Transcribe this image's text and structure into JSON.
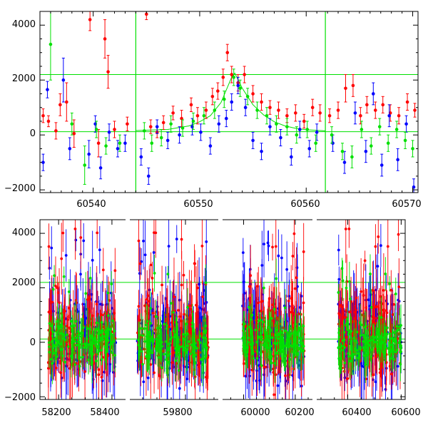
{
  "chart_data": [
    {
      "type": "scatter",
      "title": "",
      "xlabel": "",
      "ylabel": "",
      "xlim": [
        60535,
        60570.5
      ],
      "ylim": [
        -2100,
        4500
      ],
      "x_ticks": [
        60540,
        60550,
        60560,
        60570
      ],
      "x_tick_labels": [
        "60540",
        "60550",
        "60560",
        "60570"
      ],
      "y_ticks": [
        -2000,
        0,
        2000,
        4000
      ],
      "y_tick_labels": [
        "−2000",
        "0",
        "2000",
        "4000"
      ],
      "grid": false,
      "legend": "none",
      "reference_lines": {
        "horizontal": [
          120,
          2200
        ],
        "vertical": [
          60544,
          60561.8
        ],
        "color": "#00e000"
      },
      "model_curve": {
        "color": "#00e000",
        "peak_x": 60553.3,
        "peak_y": 2250,
        "baseline_y": 110,
        "x": [
          60544,
          60547,
          60549,
          60550,
          60551,
          60552,
          60553,
          60553.3,
          60554,
          60555,
          60556,
          60557,
          60558,
          60559,
          60560,
          60561.8
        ],
        "y": [
          160,
          200,
          330,
          480,
          700,
          1180,
          2100,
          2250,
          1700,
          1100,
          730,
          480,
          330,
          240,
          190,
          150
        ]
      },
      "series": [
        {
          "name": "",
          "color": "#ff0000",
          "points": [
            {
              "x": 60535.3,
              "y": 700,
              "err": 250
            },
            {
              "x": 60535.8,
              "y": 500,
              "err": 200
            },
            {
              "x": 60536.5,
              "y": 150,
              "err": 300
            },
            {
              "x": 60536.9,
              "y": 1100,
              "err": 400
            },
            {
              "x": 60537.5,
              "y": 1200,
              "err": 700
            },
            {
              "x": 60538.2,
              "y": 50,
              "err": 500
            },
            {
              "x": 60539.7,
              "y": 4200,
              "err": 400
            },
            {
              "x": 60540.5,
              "y": -300,
              "err": 500
            },
            {
              "x": 60541.1,
              "y": 3500,
              "err": 700
            },
            {
              "x": 60541.4,
              "y": 2300,
              "err": 600
            },
            {
              "x": 60542.0,
              "y": 200,
              "err": 300
            },
            {
              "x": 60543.2,
              "y": 400,
              "err": 250
            },
            {
              "x": 60545.0,
              "y": 4400,
              "err": 200
            },
            {
              "x": 60545.4,
              "y": 300,
              "err": 250
            },
            {
              "x": 60546.0,
              "y": 100,
              "err": 200
            },
            {
              "x": 60546.6,
              "y": 450,
              "err": 250
            },
            {
              "x": 60547.5,
              "y": 800,
              "err": 250
            },
            {
              "x": 60548.3,
              "y": 600,
              "err": 300
            },
            {
              "x": 60549.2,
              "y": 1100,
              "err": 250
            },
            {
              "x": 60549.8,
              "y": 700,
              "err": 300
            },
            {
              "x": 60550.6,
              "y": 900,
              "err": 300
            },
            {
              "x": 60551.2,
              "y": 1400,
              "err": 300
            },
            {
              "x": 60551.7,
              "y": 1600,
              "err": 300
            },
            {
              "x": 60552.2,
              "y": 2100,
              "err": 300
            },
            {
              "x": 60552.6,
              "y": 3000,
              "err": 300
            },
            {
              "x": 60553.0,
              "y": 2200,
              "err": 300
            },
            {
              "x": 60553.6,
              "y": 1900,
              "err": 300
            },
            {
              "x": 60554.2,
              "y": 2200,
              "err": 300
            },
            {
              "x": 60555.0,
              "y": 1500,
              "err": 300
            },
            {
              "x": 60555.8,
              "y": 1200,
              "err": 300
            },
            {
              "x": 60556.6,
              "y": 1000,
              "err": 250
            },
            {
              "x": 60557.4,
              "y": 900,
              "err": 300
            },
            {
              "x": 60558.2,
              "y": 700,
              "err": 250
            },
            {
              "x": 60559.0,
              "y": 800,
              "err": 300
            },
            {
              "x": 60559.8,
              "y": 500,
              "err": 250
            },
            {
              "x": 60560.6,
              "y": 1000,
              "err": 300
            },
            {
              "x": 60561.3,
              "y": 800,
              "err": 300
            },
            {
              "x": 60562.2,
              "y": 700,
              "err": 250
            },
            {
              "x": 60563.0,
              "y": 900,
              "err": 300
            },
            {
              "x": 60563.7,
              "y": 1700,
              "err": 500
            },
            {
              "x": 60564.4,
              "y": 1800,
              "err": 400
            },
            {
              "x": 60565.1,
              "y": 700,
              "err": 300
            },
            {
              "x": 60565.7,
              "y": 1100,
              "err": 300
            },
            {
              "x": 60566.5,
              "y": 900,
              "err": 300
            },
            {
              "x": 60567.2,
              "y": 1100,
              "err": 300
            },
            {
              "x": 60567.9,
              "y": 800,
              "err": 300
            },
            {
              "x": 60568.7,
              "y": 700,
              "err": 300
            },
            {
              "x": 60569.5,
              "y": 1200,
              "err": 300
            },
            {
              "x": 60570.2,
              "y": 900,
              "err": 250
            }
          ]
        },
        {
          "name": "",
          "color": "#0000ff",
          "points": [
            {
              "x": 60535.3,
              "y": -1000,
              "err": 300
            },
            {
              "x": 60535.7,
              "y": 1650,
              "err": 300
            },
            {
              "x": 60537.2,
              "y": 2000,
              "err": 800
            },
            {
              "x": 60537.8,
              "y": -500,
              "err": 400
            },
            {
              "x": 60539.6,
              "y": -700,
              "err": 500
            },
            {
              "x": 60540.2,
              "y": 400,
              "err": 300
            },
            {
              "x": 60540.7,
              "y": -1200,
              "err": 400
            },
            {
              "x": 60541.5,
              "y": 100,
              "err": 300
            },
            {
              "x": 60542.3,
              "y": -500,
              "err": 300
            },
            {
              "x": 60543.0,
              "y": -300,
              "err": 300
            },
            {
              "x": 60544.5,
              "y": -800,
              "err": 300
            },
            {
              "x": 60545.2,
              "y": -1500,
              "err": 300
            },
            {
              "x": 60546.0,
              "y": 300,
              "err": 250
            },
            {
              "x": 60547.0,
              "y": -200,
              "err": 300
            },
            {
              "x": 60548.1,
              "y": 0,
              "err": 300
            },
            {
              "x": 60549.3,
              "y": 300,
              "err": 300
            },
            {
              "x": 60550.1,
              "y": 100,
              "err": 300
            },
            {
              "x": 60551.0,
              "y": -400,
              "err": 300
            },
            {
              "x": 60551.8,
              "y": 400,
              "err": 300
            },
            {
              "x": 60552.5,
              "y": 600,
              "err": 300
            },
            {
              "x": 60553.0,
              "y": 1200,
              "err": 300
            },
            {
              "x": 60553.6,
              "y": 1800,
              "err": 300
            },
            {
              "x": 60554.3,
              "y": 1000,
              "err": 300
            },
            {
              "x": 60555.0,
              "y": -200,
              "err": 300
            },
            {
              "x": 60555.8,
              "y": -600,
              "err": 300
            },
            {
              "x": 60556.6,
              "y": 300,
              "err": 300
            },
            {
              "x": 60557.6,
              "y": -100,
              "err": 300
            },
            {
              "x": 60558.6,
              "y": -800,
              "err": 300
            },
            {
              "x": 60559.4,
              "y": 200,
              "err": 300
            },
            {
              "x": 60560.3,
              "y": -500,
              "err": 300
            },
            {
              "x": 60561.0,
              "y": 100,
              "err": 300
            },
            {
              "x": 60562.5,
              "y": -300,
              "err": 300
            },
            {
              "x": 60563.6,
              "y": -1000,
              "err": 400
            },
            {
              "x": 60564.6,
              "y": 800,
              "err": 400
            },
            {
              "x": 60565.6,
              "y": -600,
              "err": 400
            },
            {
              "x": 60566.3,
              "y": 1500,
              "err": 400
            },
            {
              "x": 60567.1,
              "y": -1100,
              "err": 400
            },
            {
              "x": 60567.8,
              "y": 700,
              "err": 400
            },
            {
              "x": 60568.6,
              "y": -900,
              "err": 400
            },
            {
              "x": 60569.4,
              "y": 400,
              "err": 300
            },
            {
              "x": 60570.1,
              "y": -1900,
              "err": 300
            }
          ]
        },
        {
          "name": "",
          "color": "#00e000",
          "points": [
            {
              "x": 60536.0,
              "y": 3300,
              "err": 1300
            },
            {
              "x": 60538.0,
              "y": 400,
              "err": 400
            },
            {
              "x": 60539.2,
              "y": -1100,
              "err": 700
            },
            {
              "x": 60540.3,
              "y": 200,
              "err": 300
            },
            {
              "x": 60541.2,
              "y": -400,
              "err": 300
            },
            {
              "x": 60542.5,
              "y": -300,
              "err": 300
            },
            {
              "x": 60544.8,
              "y": 150,
              "err": 300
            },
            {
              "x": 60545.5,
              "y": -300,
              "err": 300
            },
            {
              "x": 60546.4,
              "y": -100,
              "err": 300
            },
            {
              "x": 60547.3,
              "y": 400,
              "err": 300
            },
            {
              "x": 60548.4,
              "y": 250,
              "err": 300
            },
            {
              "x": 60549.4,
              "y": 500,
              "err": 300
            },
            {
              "x": 60550.4,
              "y": 700,
              "err": 300
            },
            {
              "x": 60551.4,
              "y": 900,
              "err": 300
            },
            {
              "x": 60552.3,
              "y": 1300,
              "err": 300
            },
            {
              "x": 60553.2,
              "y": 2100,
              "err": 300
            },
            {
              "x": 60553.8,
              "y": 1700,
              "err": 300
            },
            {
              "x": 60554.5,
              "y": 1400,
              "err": 300
            },
            {
              "x": 60555.4,
              "y": 900,
              "err": 300
            },
            {
              "x": 60556.3,
              "y": 700,
              "err": 300
            },
            {
              "x": 60557.2,
              "y": 400,
              "err": 300
            },
            {
              "x": 60558.2,
              "y": 300,
              "err": 300
            },
            {
              "x": 60559.1,
              "y": 0,
              "err": 300
            },
            {
              "x": 60560.1,
              "y": 200,
              "err": 300
            },
            {
              "x": 60560.9,
              "y": -300,
              "err": 300
            },
            {
              "x": 60562.4,
              "y": 0,
              "err": 300
            },
            {
              "x": 60563.4,
              "y": -600,
              "err": 300
            },
            {
              "x": 60564.3,
              "y": -800,
              "err": 400
            },
            {
              "x": 60565.2,
              "y": 200,
              "err": 300
            },
            {
              "x": 60566.1,
              "y": -400,
              "err": 300
            },
            {
              "x": 60566.9,
              "y": 300,
              "err": 300
            },
            {
              "x": 60567.7,
              "y": -300,
              "err": 300
            },
            {
              "x": 60568.5,
              "y": 200,
              "err": 300
            },
            {
              "x": 60569.3,
              "y": -200,
              "err": 300
            },
            {
              "x": 60570.0,
              "y": -500,
              "err": 300
            }
          ]
        }
      ]
    },
    {
      "type": "scatter",
      "title": "",
      "xlabel": "",
      "ylabel": "",
      "ylim": [
        -2100,
        4500
      ],
      "broken_x_axis": true,
      "segments": [
        {
          "xlim": [
            58130,
            58435
          ],
          "ticks": [
            58200,
            58400
          ],
          "tick_labels": [
            "58200",
            "58400"
          ]
        },
        {
          "xlim": [
            59620,
            59900
          ],
          "ticks": [
            59800
          ],
          "tick_labels": [
            "59800"
          ]
        },
        {
          "xlim": [
            59935,
            60250
          ],
          "ticks": [
            60000,
            60200
          ],
          "tick_labels": [
            "60000",
            "60200"
          ]
        },
        {
          "xlim": [
            60300,
            60615
          ],
          "ticks": [
            60400,
            60600
          ],
          "tick_labels": [
            "60400",
            "60600"
          ]
        }
      ],
      "y_ticks": [
        -2000,
        0,
        2000,
        4000
      ],
      "y_tick_labels": [
        "−2000",
        "0",
        "2000",
        "4000"
      ],
      "grid": false,
      "legend": "none",
      "reference_lines": {
        "horizontal": [
          120,
          2200
        ],
        "color": "#00e000"
      },
      "observing_seasons": [
        {
          "x_start": 58160,
          "x_end": 58415
        },
        {
          "x_start": 59630,
          "x_end": 59880
        },
        {
          "x_start": 59995,
          "x_end": 60235
        },
        {
          "x_start": 60365,
          "x_end": 60600
        }
      ],
      "series": [
        {
          "name": "",
          "color": "#ff0000",
          "scatter_y": 700,
          "err": 900,
          "flare_y": 3800
        },
        {
          "name": "",
          "color": "#0000ff",
          "scatter_y": 650,
          "err": 850,
          "flare_y": 3600
        },
        {
          "name": "",
          "color": "#00e000",
          "scatter_y": 300,
          "err": 500,
          "flare_y": 2500
        }
      ]
    }
  ]
}
